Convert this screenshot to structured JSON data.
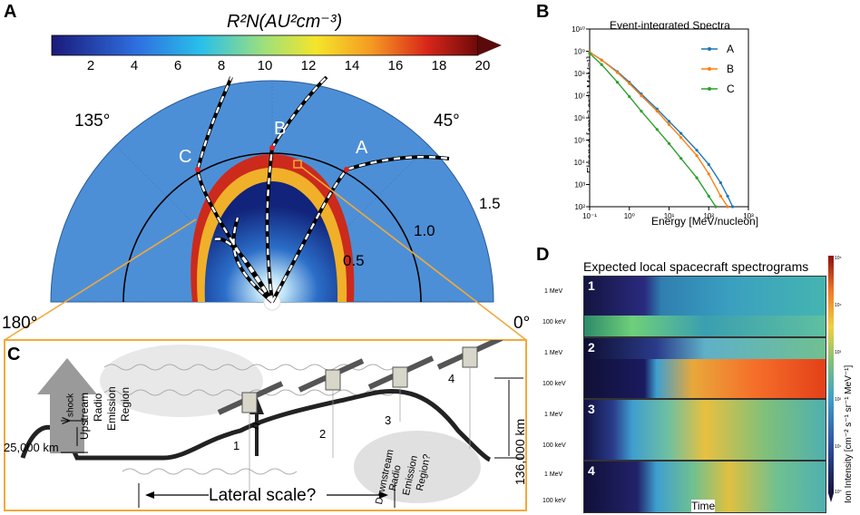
{
  "panels": {
    "a": {
      "letter": "A",
      "colorbar": {
        "title": "R²N(AU²cm⁻³)",
        "ticks": [
          "2",
          "4",
          "6",
          "8",
          "10",
          "12",
          "14",
          "16",
          "18",
          "20"
        ]
      },
      "angles": [
        "135°",
        "45°",
        "180°",
        "0°"
      ],
      "radii": [
        "0.5",
        "1.0",
        "1.5"
      ],
      "points": [
        "A",
        "B",
        "C"
      ]
    },
    "b": {
      "letter": "B",
      "chart_data": {
        "type": "line",
        "title": "Event-integrated Spectra",
        "xlabel": "Energy [MeV/nucleon]",
        "ylabel": "Fluence [cm⁻² sr⁻¹ MeV⁻¹]",
        "xscale": "log",
        "yscale": "log",
        "xlim": [
          0.1,
          1000
        ],
        "ylim": [
          100,
          10000000000.0
        ],
        "x_ticks": [
          "10⁻¹",
          "10⁰",
          "10¹",
          "10²",
          "10³"
        ],
        "y_ticks": [
          "10²",
          "10³",
          "10⁴",
          "10⁵",
          "10⁶",
          "10⁷",
          "10⁸",
          "10⁹",
          "10¹⁰"
        ],
        "series": [
          {
            "name": "A",
            "color": "#1f77b4",
            "x": [
              0.1,
              0.2,
              0.5,
              1,
              2,
              5,
              10,
              20,
              50,
              100,
              200,
              300,
              400
            ],
            "y": [
              900000000.0,
              400000000.0,
              120000000.0,
              40000000.0,
              12000000.0,
              2500000.0,
              700000.0,
              200000.0,
              35000.0,
              8000.0,
              1200.0,
              300,
              100
            ]
          },
          {
            "name": "B",
            "color": "#ff7f0e",
            "x": [
              0.1,
              0.2,
              0.5,
              1,
              2,
              5,
              10,
              20,
              50,
              100,
              200,
              300
            ],
            "y": [
              900000000.0,
              400000000.0,
              110000000.0,
              35000000.0,
              10000000.0,
              2000000.0,
              500000.0,
              130000.0,
              20000.0,
              3000.0,
              300,
              100
            ]
          },
          {
            "name": "C",
            "color": "#2ca02c",
            "x": [
              0.1,
              0.2,
              0.5,
              1,
              2,
              5,
              10,
              20,
              50,
              100,
              150
            ],
            "y": [
              800000000.0,
              250000000.0,
              40000000.0,
              9000000.0,
              2000000.0,
              300000.0,
              70000.0,
              15000.0,
              2000.0,
              300,
              100
            ]
          }
        ]
      }
    },
    "c": {
      "letter": "C",
      "v_shock": "V",
      "v_shock_sub": "shock",
      "upstream": [
        "Upstream",
        "Radio",
        "Emission",
        "Region"
      ],
      "downstream": [
        "Downstream",
        "Radio",
        "Emission",
        "Region?"
      ],
      "scale_25000": "25,000 km",
      "scale_136000": "136,000 km",
      "lateral": "Lateral scale?",
      "n_label": "n",
      "craft": [
        "1",
        "2",
        "3",
        "4"
      ]
    },
    "d": {
      "letter": "D",
      "title": "Expected local spacecraft spectrograms",
      "xlabel": "Time",
      "cb_label": "Ion Intensity [cm⁻² s⁻¹ sr⁻¹ MeV⁻¹]",
      "cb_ticks": [
        "10⁵",
        "10⁴",
        "10³",
        "10²",
        "10¹",
        "10⁰"
      ],
      "ylabels": [
        "1 MeV",
        "100 keV"
      ],
      "spectrograms": [
        "1",
        "2",
        "3",
        "4"
      ]
    }
  }
}
